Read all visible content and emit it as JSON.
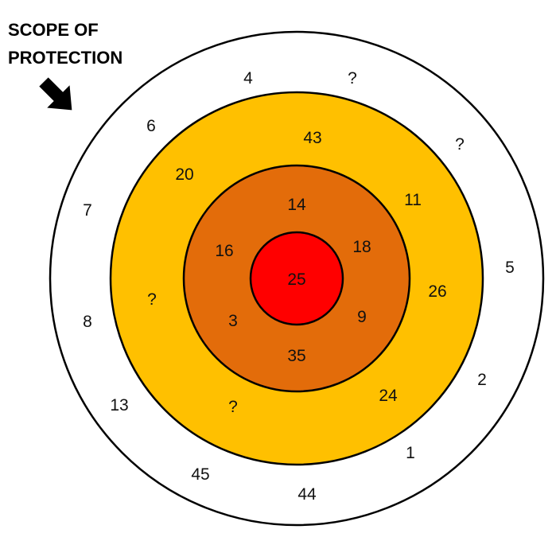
{
  "title_lines": [
    "SCOPE OF",
    "PROTECTION"
  ],
  "colors": {
    "outer_ring": "#ffffff",
    "middle_ring": "#ffc000",
    "inner_ring": "#e36c0a",
    "core": "#ff0000",
    "stroke": "#000000"
  },
  "icons": {
    "pointer": "arrow-down-right-icon"
  },
  "labels": {
    "core": [
      "25"
    ],
    "inner": [
      "14",
      "16",
      "18",
      "3",
      "9",
      "35"
    ],
    "middle": [
      "43",
      "20",
      "11",
      "?",
      "26",
      "?",
      "24"
    ],
    "outer": [
      "4",
      "?",
      "6",
      "?",
      "7",
      "5",
      "8",
      "2",
      "13",
      "1",
      "45",
      "44"
    ]
  }
}
